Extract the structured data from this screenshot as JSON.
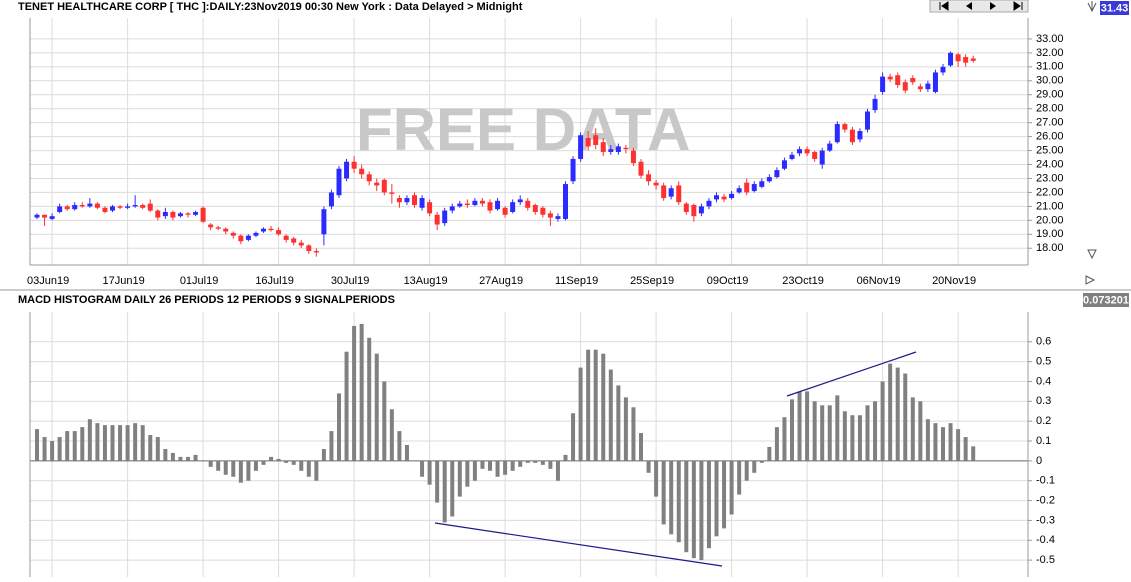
{
  "chart_data": [
    {
      "type": "candlestick",
      "title": "TENET HEALTHCARE CORP [ THC ]:DAILY:23Nov2019 00:30 New York : Data Delayed > Midnight",
      "watermark": "FREE DATA",
      "categories": [
        null,
        null,
        "03Jun19",
        null,
        null,
        null,
        null,
        null,
        null,
        null,
        null,
        null,
        "17Jun19",
        null,
        null,
        null,
        null,
        null,
        null,
        null,
        null,
        null,
        "01Jul19",
        null,
        null,
        null,
        null,
        null,
        null,
        null,
        null,
        null,
        "16Jul19",
        null,
        null,
        null,
        null,
        null,
        null,
        null,
        null,
        null,
        "30Jul19",
        null,
        null,
        null,
        null,
        null,
        null,
        null,
        null,
        null,
        "13Aug19",
        null,
        null,
        null,
        null,
        null,
        null,
        null,
        null,
        null,
        "27Aug19",
        null,
        null,
        null,
        null,
        null,
        null,
        null,
        null,
        null,
        "11Sep19",
        null,
        null,
        null,
        null,
        null,
        null,
        null,
        null,
        null,
        "25Sep19",
        null,
        null,
        null,
        null,
        null,
        null,
        null,
        null,
        null,
        "09Oct19",
        null,
        null,
        null,
        null,
        null,
        null,
        null,
        null,
        null,
        "23Oct19",
        null,
        null,
        null,
        null,
        null,
        null,
        null,
        null,
        null,
        "06Nov19",
        null,
        null,
        null,
        null,
        null,
        null,
        null,
        null,
        null,
        "20Nov19",
        null,
        null
      ],
      "open": [
        20.2,
        20.4,
        20.1,
        20.6,
        21.0,
        20.8,
        21.1,
        21.0,
        21.2,
        20.9,
        20.7,
        21.0,
        20.9,
        21.0,
        21.1,
        21.2,
        20.7,
        20.3,
        20.6,
        20.3,
        20.5,
        20.4,
        20.9,
        19.7,
        19.5,
        19.4,
        19.1,
        18.9,
        18.6,
        18.9,
        19.2,
        19.4,
        19.3,
        18.9,
        18.7,
        18.4,
        18.2,
        17.8,
        19.0,
        21.0,
        21.8,
        23.0,
        24.2,
        23.7,
        23.3,
        22.7,
        22.9,
        22.0,
        21.6,
        21.3,
        21.8,
        20.9,
        21.3,
        20.4,
        19.8,
        20.7,
        21.0,
        21.2,
        21.1,
        21.4,
        21.3,
        20.8,
        20.9,
        20.6,
        21.3,
        21.4,
        21.1,
        20.9,
        20.5,
        20.1,
        20.1,
        22.8,
        24.4,
        25.9,
        26.1,
        25.6,
        24.9,
        24.9,
        25.2,
        25.0,
        24.2,
        23.3,
        22.7,
        22.5,
        21.7,
        22.5,
        21.2,
        21.1,
        20.5,
        21.0,
        21.5,
        21.7,
        21.6,
        22.0,
        22.7,
        22.1,
        22.4,
        22.8,
        23.1,
        23.7,
        24.4,
        24.8,
        25.1,
        24.9,
        24.0,
        25.0,
        25.6,
        26.9,
        26.5,
        25.8,
        26.5,
        27.9,
        29.2,
        30.3,
        30.4,
        29.9,
        30.2,
        29.6,
        29.4,
        29.2,
        30.6,
        31.1,
        31.9,
        31.7,
        31.6
      ],
      "high": [
        20.5,
        20.4,
        20.5,
        21.2,
        21.1,
        21.3,
        21.3,
        21.6,
        21.3,
        21.0,
        21.1,
        21.1,
        21.2,
        21.8,
        21.2,
        21.5,
        20.8,
        20.9,
        20.7,
        20.6,
        20.6,
        20.7,
        21.0,
        19.8,
        19.6,
        19.5,
        19.2,
        19.0,
        19.0,
        19.2,
        19.5,
        19.6,
        19.5,
        19.0,
        18.8,
        18.6,
        18.3,
        18.0,
        21.0,
        22.2,
        23.9,
        24.4,
        24.6,
        24.0,
        23.5,
        23.0,
        23.0,
        22.6,
        21.8,
        21.8,
        22.0,
        21.8,
        21.5,
        20.6,
        20.9,
        21.2,
        21.4,
        21.5,
        21.6,
        21.6,
        21.5,
        21.6,
        21.0,
        21.5,
        21.8,
        21.6,
        21.2,
        21.0,
        20.7,
        20.5,
        22.8,
        24.6,
        26.3,
        26.4,
        26.6,
        25.9,
        25.4,
        25.5,
        25.4,
        25.2,
        24.4,
        23.6,
        22.9,
        22.7,
        22.5,
        22.8,
        21.3,
        21.2,
        21.2,
        21.6,
        22.0,
        21.9,
        22.1,
        22.5,
        23.0,
        22.8,
        23.0,
        23.3,
        23.8,
        24.5,
        24.9,
        25.3,
        25.3,
        25.0,
        25.2,
        25.7,
        27.1,
        27.0,
        26.7,
        26.6,
        28.0,
        29.0,
        30.6,
        30.5,
        30.6,
        30.1,
        30.4,
        29.8,
        30.0,
        30.8,
        31.2,
        32.1,
        32.0,
        31.9,
        31.8
      ],
      "low": [
        20.1,
        19.6,
        20.0,
        20.5,
        20.7,
        20.7,
        20.9,
        20.9,
        20.8,
        20.5,
        20.6,
        20.8,
        20.8,
        20.9,
        20.8,
        20.6,
        20.0,
        20.1,
        20.0,
        20.2,
        20.2,
        20.3,
        19.8,
        19.3,
        19.3,
        19.0,
        18.7,
        18.3,
        18.5,
        18.8,
        19.1,
        19.2,
        18.9,
        18.4,
        18.2,
        18.0,
        17.6,
        17.4,
        18.2,
        20.8,
        21.6,
        22.8,
        23.4,
        23.0,
        22.5,
        22.1,
        21.8,
        21.2,
        20.9,
        21.1,
        20.9,
        20.7,
        20.3,
        19.3,
        19.6,
        20.5,
        20.9,
        20.9,
        21.0,
        21.0,
        20.5,
        20.7,
        20.2,
        20.5,
        21.1,
        20.7,
        20.4,
        20.2,
        19.6,
        19.9,
        20.0,
        22.6,
        24.2,
        25.0,
        25.1,
        24.6,
        24.7,
        24.7,
        24.8,
        23.9,
        23.0,
        22.5,
        22.2,
        21.4,
        21.5,
        21.1,
        20.4,
        19.9,
        20.3,
        20.8,
        21.3,
        21.3,
        21.5,
        21.9,
        21.8,
        22.0,
        22.3,
        22.7,
        23.0,
        23.6,
        24.3,
        24.6,
        24.6,
        24.2,
        23.7,
        24.9,
        25.5,
        26.3,
        25.4,
        25.6,
        26.3,
        27.7,
        29.0,
        29.9,
        29.5,
        29.1,
        29.7,
        29.2,
        29.2,
        29.1,
        30.4,
        31.0,
        31.0,
        31.0,
        31.3
      ],
      "close": [
        20.4,
        20.2,
        20.3,
        21.0,
        20.8,
        21.1,
        21.0,
        21.2,
        20.9,
        20.6,
        21.0,
        20.9,
        21.0,
        21.1,
        20.9,
        20.7,
        20.2,
        20.6,
        20.2,
        20.5,
        20.4,
        20.6,
        19.9,
        19.5,
        19.4,
        19.2,
        18.9,
        18.5,
        18.9,
        19.1,
        19.4,
        19.3,
        19.0,
        18.6,
        18.4,
        18.2,
        17.8,
        17.7,
        20.8,
        22.0,
        23.7,
        24.2,
        23.7,
        23.3,
        22.8,
        22.5,
        22.0,
        21.9,
        21.3,
        21.6,
        21.1,
        21.6,
        20.5,
        19.7,
        20.7,
        21.0,
        21.2,
        21.1,
        21.4,
        21.2,
        20.7,
        21.4,
        20.4,
        21.3,
        21.5,
        20.9,
        20.6,
        20.4,
        20.2,
        20.3,
        22.6,
        24.4,
        26.1,
        25.3,
        25.4,
        24.9,
        25.1,
        25.3,
        25.1,
        24.1,
        23.2,
        22.8,
        22.5,
        21.6,
        22.3,
        21.3,
        20.6,
        20.3,
        21.0,
        21.4,
        21.8,
        21.5,
        21.9,
        22.3,
        22.0,
        22.6,
        22.8,
        23.1,
        23.6,
        24.3,
        24.7,
        25.1,
        24.8,
        24.4,
        25.0,
        25.5,
        26.9,
        26.5,
        25.6,
        26.4,
        27.8,
        28.7,
        30.3,
        30.1,
        29.7,
        29.3,
        29.9,
        29.4,
        29.8,
        30.6,
        31.0,
        32.0,
        31.4,
        31.3,
        31.43
      ],
      "up_color": "#2b2bff",
      "down_color": "#ff3030",
      "ylim": [
        16.8,
        34.5
      ],
      "yticks": [
        {
          "value": 18,
          "label": "18.00"
        },
        {
          "value": 19,
          "label": "19.00"
        },
        {
          "value": 20,
          "label": "20.00"
        },
        {
          "value": 21,
          "label": "21.00"
        },
        {
          "value": 22,
          "label": "22.00"
        },
        {
          "value": 23,
          "label": "23.00"
        },
        {
          "value": 24,
          "label": "24.00"
        },
        {
          "value": 25,
          "label": "25.00"
        },
        {
          "value": 26,
          "label": "26.00"
        },
        {
          "value": 27,
          "label": "27.00"
        },
        {
          "value": 28,
          "label": "28.00"
        },
        {
          "value": 29,
          "label": "29.00"
        },
        {
          "value": 30,
          "label": "30.00"
        },
        {
          "value": 31,
          "label": "31.00"
        },
        {
          "value": 32,
          "label": "32.00"
        },
        {
          "value": 33,
          "label": "33.00"
        }
      ],
      "grid": true
    },
    {
      "type": "bar",
      "title": "MACD HISTOGRAM DAILY 26 PERIODS 12 PERIODS 9 SIGNALPERIODS",
      "values": [
        0.16,
        0.12,
        0.1,
        0.12,
        0.15,
        0.15,
        0.17,
        0.21,
        0.19,
        0.18,
        0.18,
        0.18,
        0.18,
        0.19,
        0.18,
        0.13,
        0.12,
        0.06,
        0.04,
        0.02,
        0.02,
        0.03,
        0.0,
        -0.03,
        -0.05,
        -0.07,
        -0.08,
        -0.11,
        -0.1,
        -0.05,
        -0.02,
        0.02,
        0.01,
        -0.01,
        -0.02,
        -0.05,
        -0.08,
        -0.1,
        0.06,
        0.15,
        0.34,
        0.55,
        0.68,
        0.69,
        0.62,
        0.54,
        0.4,
        0.26,
        0.15,
        0.08,
        0.0,
        -0.08,
        -0.12,
        -0.21,
        -0.31,
        -0.28,
        -0.18,
        -0.13,
        -0.1,
        -0.04,
        -0.05,
        -0.08,
        -0.07,
        -0.05,
        -0.03,
        -0.01,
        -0.01,
        -0.02,
        -0.04,
        -0.1,
        0.03,
        0.24,
        0.47,
        0.56,
        0.56,
        0.54,
        0.46,
        0.38,
        0.32,
        0.27,
        0.14,
        -0.06,
        -0.18,
        -0.32,
        -0.37,
        -0.41,
        -0.46,
        -0.49,
        -0.5,
        -0.44,
        -0.38,
        -0.34,
        -0.27,
        -0.17,
        -0.1,
        -0.06,
        -0.01,
        0.07,
        0.17,
        0.22,
        0.31,
        0.35,
        0.35,
        0.3,
        0.28,
        0.28,
        0.33,
        0.25,
        0.23,
        0.23,
        0.28,
        0.3,
        0.4,
        0.49,
        0.47,
        0.44,
        0.32,
        0.3,
        0.21,
        0.19,
        0.17,
        0.19,
        0.16,
        0.12,
        0.073201
      ],
      "color": "#808080",
      "ylim": [
        -0.585,
        0.75
      ],
      "yticks": [
        0.6,
        0.5,
        0.4,
        0.3,
        0.2,
        0.1,
        0,
        -0.1,
        -0.2,
        -0.3,
        -0.4,
        -0.5
      ],
      "grid": true
    }
  ]
}
